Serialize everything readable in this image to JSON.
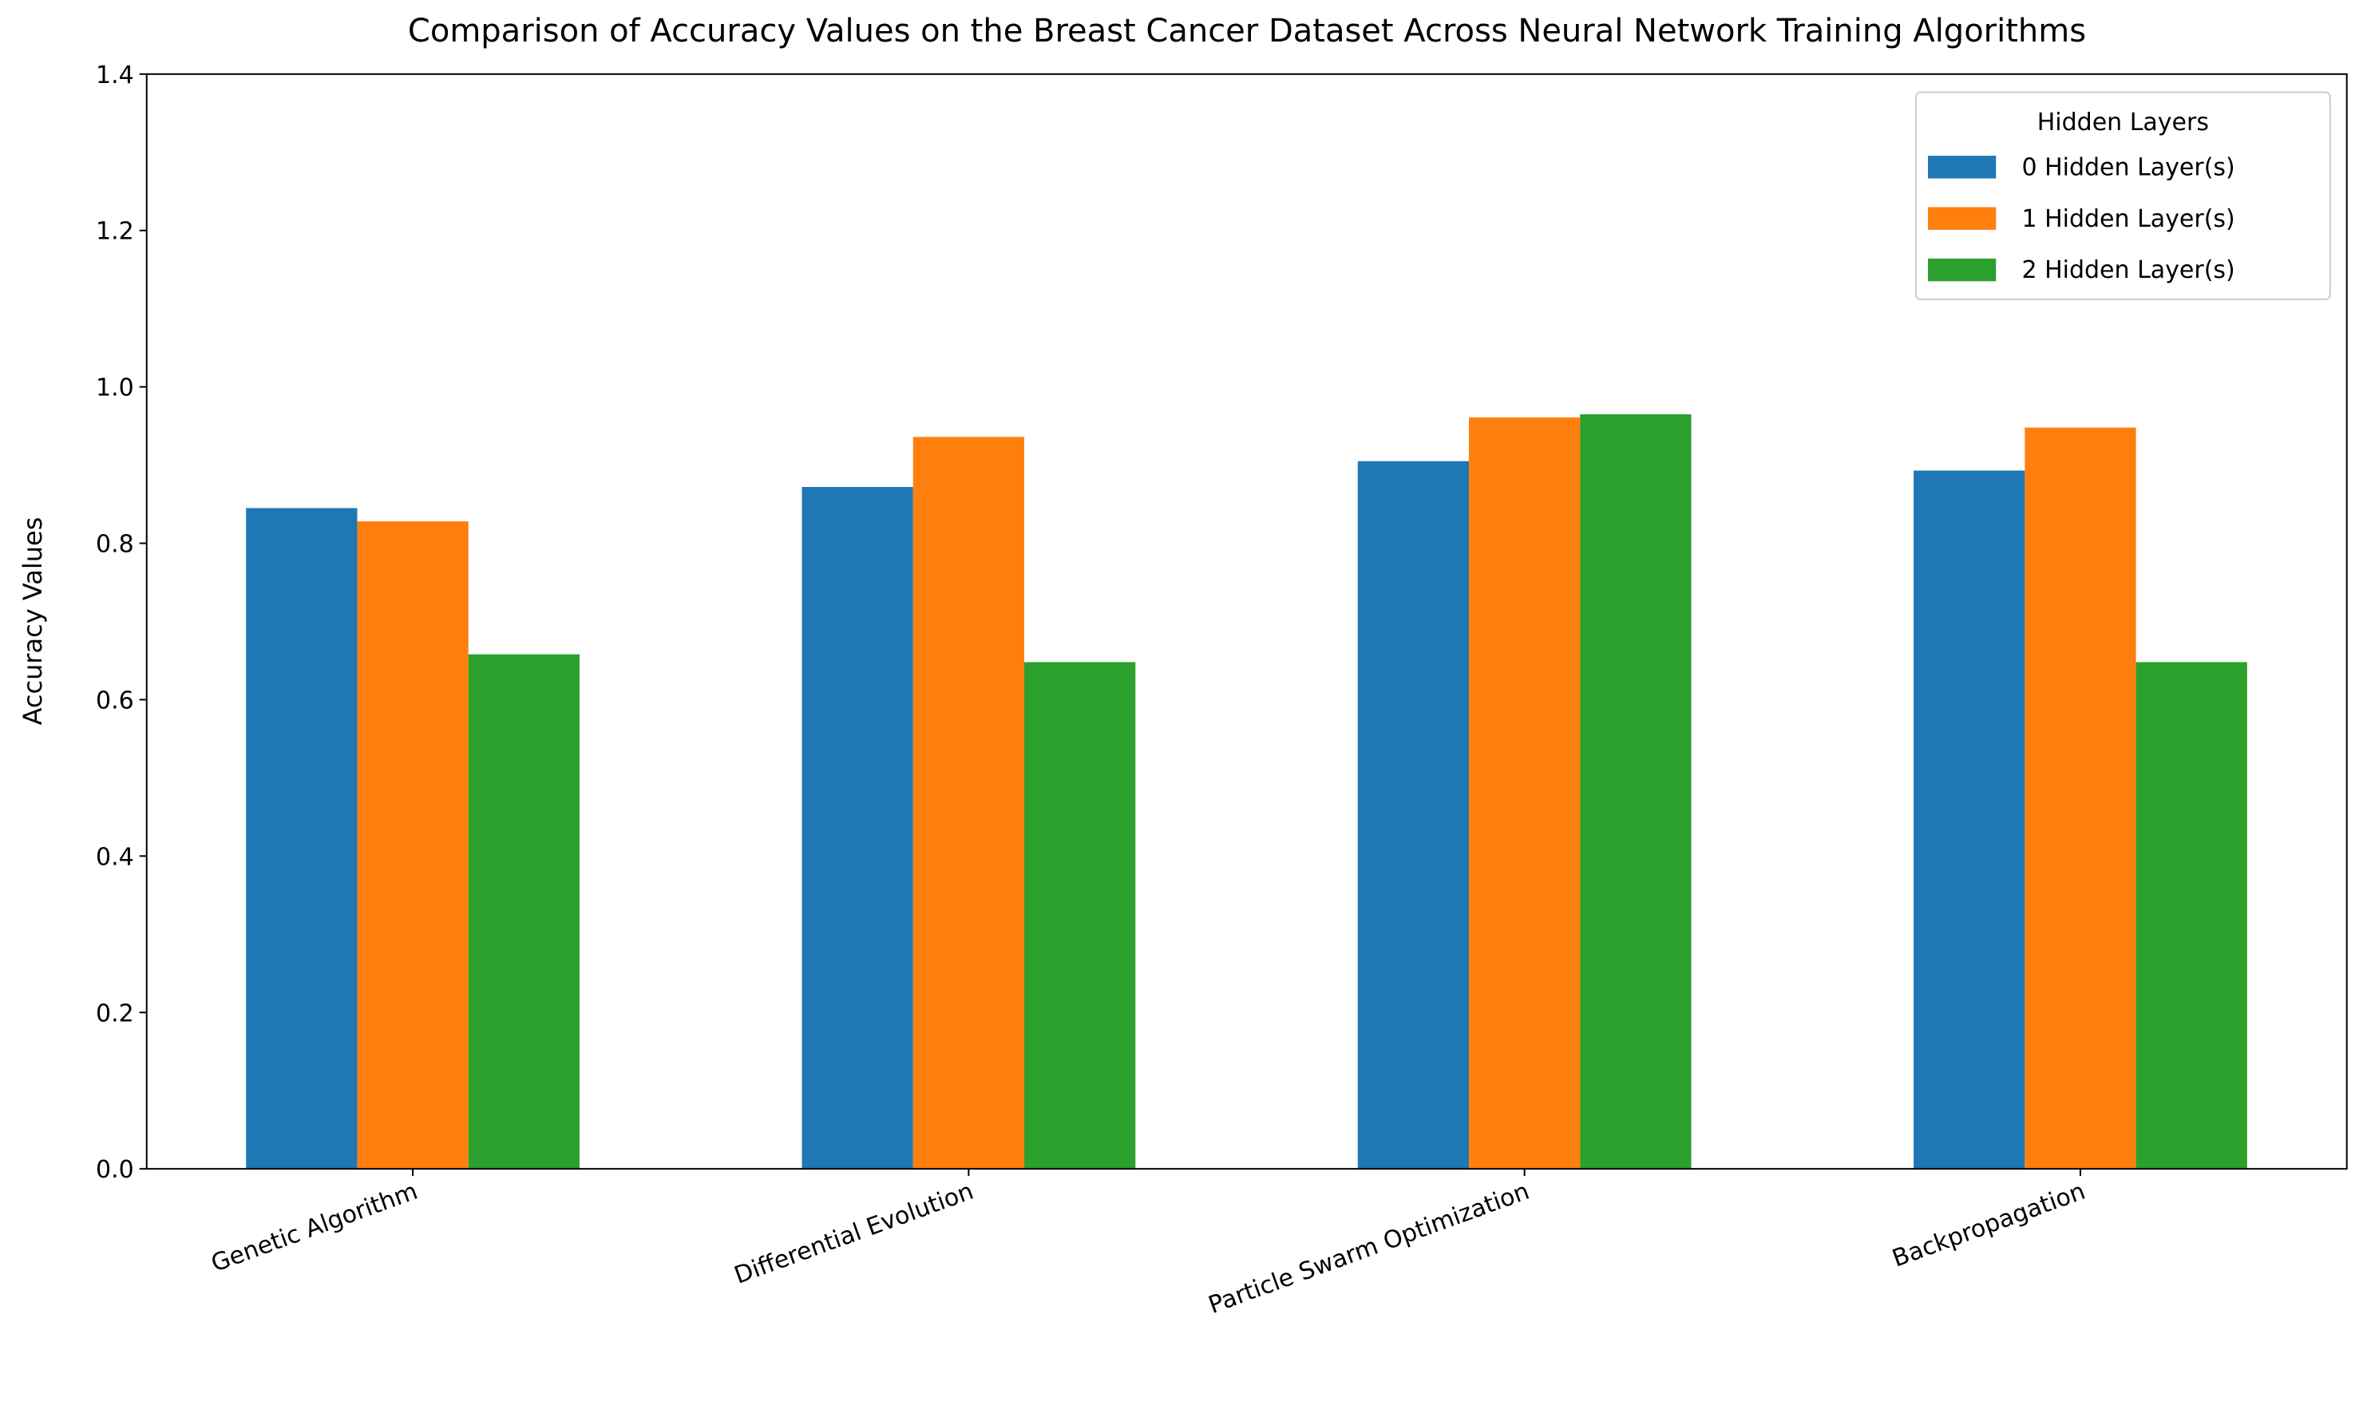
{
  "chart_data": {
    "type": "bar",
    "title": "Comparison of Accuracy Values on the Breast Cancer Dataset Across Neural Network Training Algorithms",
    "y_label": "Accuracy Values",
    "categories": [
      "Genetic Algorithm",
      "Differential Evolution",
      "Particle Swarm Optimization",
      "Backpropagation"
    ],
    "series": [
      {
        "name": "0 Hidden Layer(s)",
        "color": "#1f77b4",
        "values": [
          0.845,
          0.872,
          0.905,
          0.893
        ]
      },
      {
        "name": "1 Hidden Layer(s)",
        "color": "#ff7f0e",
        "values": [
          0.828,
          0.936,
          0.961,
          0.948
        ]
      },
      {
        "name": "2 Hidden Layer(s)",
        "color": "#2ca02c",
        "values": [
          0.658,
          0.648,
          0.965,
          0.648
        ]
      }
    ],
    "ylim": [
      0,
      1.4
    ],
    "yticks": [
      {
        "value": 0,
        "label": "0.0"
      },
      0.2,
      0.4,
      0.6,
      0.8,
      {
        "value": 1,
        "label": "1.0"
      },
      1.2,
      1.4
    ],
    "legend_title": "Hidden Layers",
    "legend_position": "upper right",
    "grid": false
  }
}
